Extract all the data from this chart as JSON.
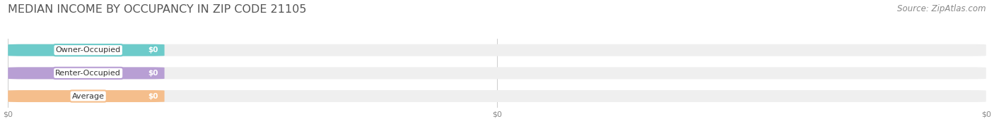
{
  "title": "Median Income by Occupancy in Zip Code 21105",
  "source": "Source: ZipAtlas.com",
  "categories": [
    "Owner-Occupied",
    "Renter-Occupied",
    "Average"
  ],
  "values": [
    0,
    0,
    0
  ],
  "bar_colors": [
    "#6dcbca",
    "#b89fd4",
    "#f5be8c"
  ],
  "bar_bg_color": "#efefef",
  "background_color": "#ffffff",
  "title_fontsize": 11.5,
  "source_fontsize": 8.5,
  "bar_height": 0.52,
  "xlim": [
    0,
    1
  ],
  "figsize": [
    14.06,
    1.96
  ]
}
